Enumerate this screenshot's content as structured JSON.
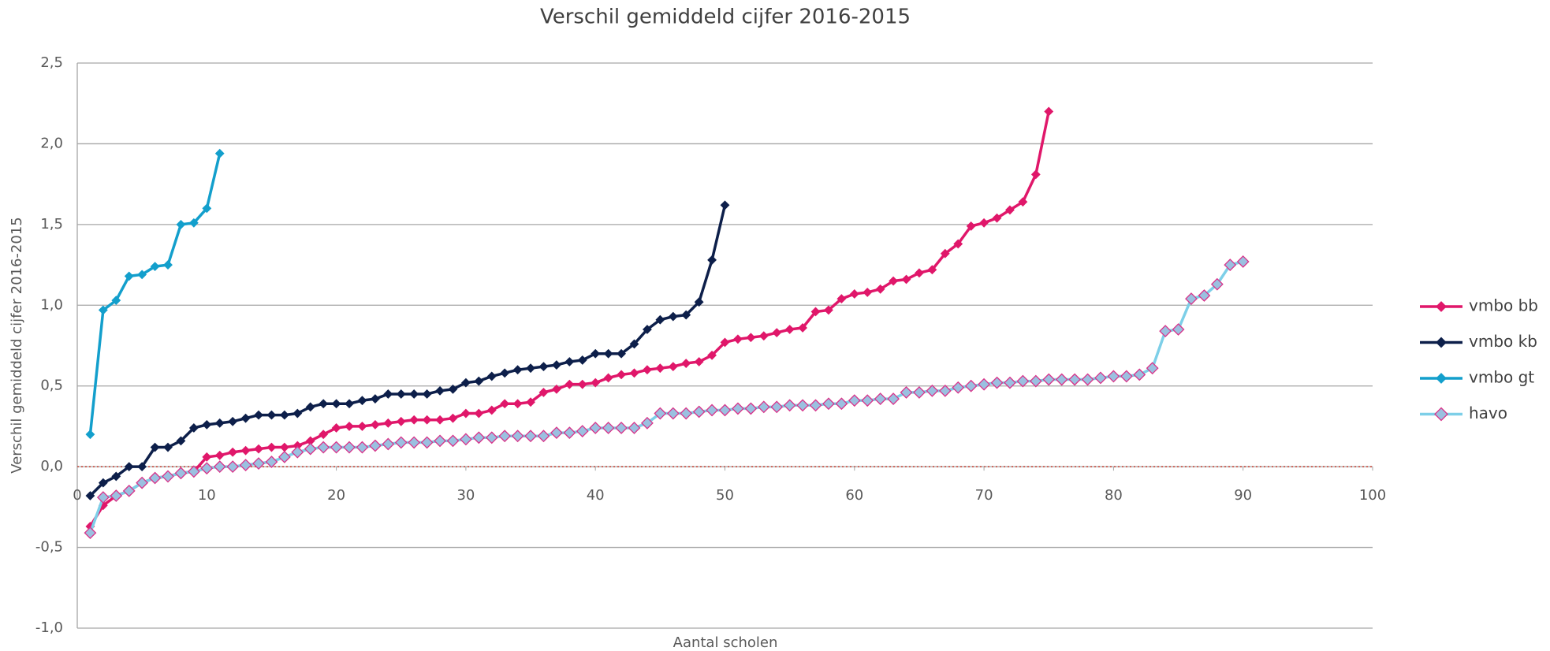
{
  "chart_data": {
    "type": "line",
    "title": "Verschil gemiddeld cijfer 2016-2015",
    "xlabel": "Aantal scholen",
    "ylabel": "Verschil gemiddeld cijfer 2016-2015",
    "xlim": [
      0,
      100
    ],
    "xticks": [
      0,
      10,
      20,
      30,
      40,
      50,
      60,
      70,
      80,
      90,
      100
    ],
    "ylim": [
      -1.0,
      2.5
    ],
    "yticks": [
      {
        "value": -1.0,
        "label": "-1,0"
      },
      {
        "value": -0.5,
        "label": "-0,5"
      },
      {
        "value": 0.0,
        "label": "0,0"
      },
      {
        "value": 0.5,
        "label": "0,5"
      },
      {
        "value": 1.0,
        "label": "1,0"
      },
      {
        "value": 1.5,
        "label": "1,5"
      },
      {
        "value": 2.0,
        "label": "2,0"
      },
      {
        "value": 2.5,
        "label": "2,5"
      }
    ],
    "grid": true,
    "legend": "right",
    "series": [
      {
        "name": "vmbo bb",
        "color": "#e0176a",
        "marker_fill": "#e0176a",
        "marker_edge": "#e0176a",
        "marker_size": 5,
        "x": [
          1,
          2,
          3,
          4,
          5,
          6,
          7,
          8,
          9,
          10,
          11,
          12,
          13,
          14,
          15,
          16,
          17,
          18,
          19,
          20,
          21,
          22,
          23,
          24,
          25,
          26,
          27,
          28,
          29,
          30,
          31,
          32,
          33,
          34,
          35,
          36,
          37,
          38,
          39,
          40,
          41,
          42,
          43,
          44,
          45,
          46,
          47,
          48,
          49,
          50,
          51,
          52,
          53,
          54,
          55,
          56,
          57,
          58,
          59,
          60,
          61,
          62,
          63,
          64,
          65,
          66,
          67,
          68,
          69,
          70,
          71,
          72,
          73,
          74,
          75
        ],
        "values": [
          -0.37,
          -0.24,
          -0.18,
          -0.15,
          -0.1,
          -0.07,
          -0.06,
          -0.04,
          -0.03,
          0.06,
          0.07,
          0.09,
          0.1,
          0.11,
          0.12,
          0.12,
          0.13,
          0.16,
          0.2,
          0.24,
          0.25,
          0.25,
          0.26,
          0.27,
          0.28,
          0.29,
          0.29,
          0.29,
          0.3,
          0.33,
          0.33,
          0.35,
          0.39,
          0.39,
          0.4,
          0.46,
          0.48,
          0.51,
          0.51,
          0.52,
          0.55,
          0.57,
          0.58,
          0.6,
          0.61,
          0.62,
          0.64,
          0.65,
          0.69,
          0.77,
          0.79,
          0.8,
          0.81,
          0.83,
          0.85,
          0.86,
          0.96,
          0.97,
          1.04,
          1.07,
          1.08,
          1.1,
          1.15,
          1.16,
          1.2,
          1.22,
          1.32,
          1.38,
          1.49,
          1.51,
          1.54,
          1.59,
          1.64,
          1.81,
          2.2
        ]
      },
      {
        "name": "vmbo kb",
        "color": "#0d1f4a",
        "marker_fill": "#0d1f4a",
        "marker_edge": "#0d1f4a",
        "marker_size": 5,
        "x": [
          1,
          2,
          3,
          4,
          5,
          6,
          7,
          8,
          9,
          10,
          11,
          12,
          13,
          14,
          15,
          16,
          17,
          18,
          19,
          20,
          21,
          22,
          23,
          24,
          25,
          26,
          27,
          28,
          29,
          30,
          31,
          32,
          33,
          34,
          35,
          36,
          37,
          38,
          39,
          40,
          41,
          42,
          43,
          44,
          45,
          46,
          47,
          48,
          49,
          50
        ],
        "values": [
          -0.18,
          -0.1,
          -0.06,
          0.0,
          0.0,
          0.12,
          0.12,
          0.16,
          0.24,
          0.26,
          0.27,
          0.28,
          0.3,
          0.32,
          0.32,
          0.32,
          0.33,
          0.37,
          0.39,
          0.39,
          0.39,
          0.41,
          0.42,
          0.45,
          0.45,
          0.45,
          0.45,
          0.47,
          0.48,
          0.52,
          0.53,
          0.56,
          0.58,
          0.6,
          0.61,
          0.62,
          0.63,
          0.65,
          0.66,
          0.7,
          0.7,
          0.7,
          0.76,
          0.85,
          0.91,
          0.93,
          0.94,
          1.02,
          1.28,
          1.62
        ]
      },
      {
        "name": "vmbo gt",
        "color": "#139fcc",
        "marker_fill": "#139fcc",
        "marker_edge": "#139fcc",
        "marker_size": 5,
        "x": [
          1,
          2,
          3,
          4,
          5,
          6,
          7,
          8,
          9,
          10,
          11
        ],
        "values": [
          0.2,
          0.97,
          1.03,
          1.18,
          1.19,
          1.24,
          1.25,
          1.5,
          1.51,
          1.6,
          1.94
        ]
      },
      {
        "name": "havo",
        "color": "#7dcfe8",
        "marker_fill": "#9bc0e0",
        "marker_edge": "#d9338a",
        "marker_size": 7,
        "x": [
          1,
          2,
          3,
          4,
          5,
          6,
          7,
          8,
          9,
          10,
          11,
          12,
          13,
          14,
          15,
          16,
          17,
          18,
          19,
          20,
          21,
          22,
          23,
          24,
          25,
          26,
          27,
          28,
          29,
          30,
          31,
          32,
          33,
          34,
          35,
          36,
          37,
          38,
          39,
          40,
          41,
          42,
          43,
          44,
          45,
          46,
          47,
          48,
          49,
          50,
          51,
          52,
          53,
          54,
          55,
          56,
          57,
          58,
          59,
          60,
          61,
          62,
          63,
          64,
          65,
          66,
          67,
          68,
          69,
          70,
          71,
          72,
          73,
          74,
          75,
          76,
          77,
          78,
          79,
          80,
          81,
          82,
          83,
          84,
          85,
          86,
          87,
          88,
          89,
          90
        ],
        "values": [
          -0.41,
          -0.19,
          -0.18,
          -0.15,
          -0.1,
          -0.07,
          -0.06,
          -0.04,
          -0.03,
          -0.01,
          0.0,
          0.0,
          0.01,
          0.02,
          0.03,
          0.06,
          0.09,
          0.11,
          0.12,
          0.12,
          0.12,
          0.12,
          0.13,
          0.14,
          0.15,
          0.15,
          0.15,
          0.16,
          0.16,
          0.17,
          0.18,
          0.18,
          0.19,
          0.19,
          0.19,
          0.19,
          0.21,
          0.21,
          0.22,
          0.24,
          0.24,
          0.24,
          0.24,
          0.27,
          0.33,
          0.33,
          0.33,
          0.34,
          0.35,
          0.35,
          0.36,
          0.36,
          0.37,
          0.37,
          0.38,
          0.38,
          0.38,
          0.39,
          0.39,
          0.41,
          0.41,
          0.42,
          0.42,
          0.46,
          0.46,
          0.47,
          0.47,
          0.49,
          0.5,
          0.51,
          0.52,
          0.52,
          0.53,
          0.53,
          0.54,
          0.54,
          0.54,
          0.54,
          0.55,
          0.56,
          0.56,
          0.57,
          0.61,
          0.84,
          0.85,
          1.04,
          1.06,
          1.13,
          1.25,
          1.27
        ]
      }
    ]
  }
}
